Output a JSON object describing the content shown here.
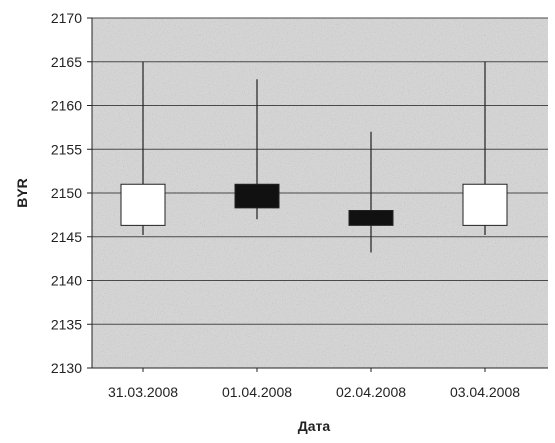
{
  "chart_data": {
    "type": "candlestick",
    "title": "",
    "xlabel": "Дата",
    "ylabel": "BYR",
    "ylim": [
      2130,
      2170
    ],
    "ytick_step": 5,
    "grid": true,
    "categories": [
      "31.03.2008",
      "01.04.2008",
      "02.04.2008",
      "03.04.2008"
    ],
    "series": [
      {
        "open": 2146.3,
        "close": 2151.0,
        "high": 2165.0,
        "low": 2145.2
      },
      {
        "open": 2151.0,
        "close": 2148.3,
        "high": 2163.0,
        "low": 2147.0
      },
      {
        "open": 2148.0,
        "close": 2146.3,
        "high": 2157.0,
        "low": 2143.2
      },
      {
        "open": 2146.3,
        "close": 2151.0,
        "high": 2165.0,
        "low": 2145.2
      }
    ],
    "colors": {
      "up": "#ffffff",
      "down": "#111111",
      "line": "#222222",
      "plot_bg": "#d6d6d6",
      "grid": "#4a4a4a"
    }
  }
}
